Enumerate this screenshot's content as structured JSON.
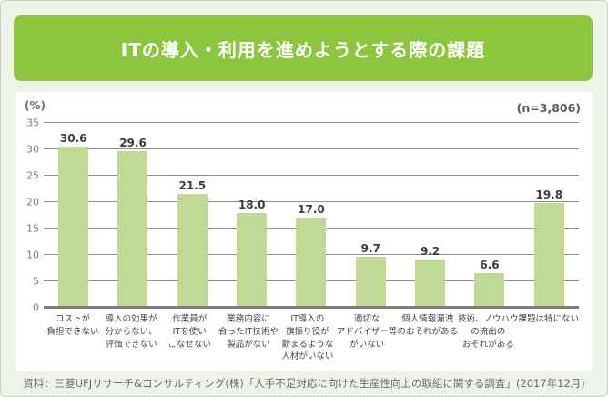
{
  "page": {
    "source": "資料：三菱UFJリサーチ&コンサルティング(株)「人手不足対応に向けた生産性向上の取組に関する調査」(2017年12月)"
  },
  "chart_data": {
    "type": "bar",
    "title": "ITの導入・利用を進めようとする際の課題",
    "ylabel": "(%)",
    "n_label": "(n=3,806)",
    "ylim": [
      0,
      35
    ],
    "yticks": [
      0,
      5,
      10,
      15,
      20,
      25,
      30,
      35
    ],
    "grid": true,
    "categories": [
      "コストが負担できない",
      "導入の効果が分からない、評価できない",
      "作業員がITを使いこなせない",
      "業務内容に合ったIT技術や製品がない",
      "IT導入の旗振り役が勤まるような人材がいない",
      "適切なアドバイザー等がいない",
      "個人情報漏洩のおそれがある",
      "技術、ノウハウの流出のおそれがある",
      "課題は特にない"
    ],
    "category_lines": [
      [
        "コストが",
        "負担できない"
      ],
      [
        "導入の効果が",
        "分からない、",
        "評価できない"
      ],
      [
        "作業員が",
        "ITを使い",
        "こなせない"
      ],
      [
        "業務内容に",
        "合ったIT技術や",
        "製品がない"
      ],
      [
        "IT導入の",
        "旗振り役が",
        "勤まるような",
        "人材がいない"
      ],
      [
        "適切な",
        "アドバイザー等",
        "がいない"
      ],
      [
        "個人情報漏洩",
        "のおそれがある"
      ],
      [
        "技術、ノウハウ",
        "の流出の",
        "おそれがある"
      ],
      [
        "課題は特にない"
      ]
    ],
    "values": [
      30.6,
      29.6,
      21.5,
      18.0,
      17.0,
      9.7,
      9.2,
      6.6,
      19.8
    ]
  },
  "colors": {
    "banner_green": "#8cc63e",
    "bar_green": "#c0da96",
    "page_background": "#eef3e9",
    "panel_background": "#ffffff",
    "gridline_gray": "#8e8e8e"
  }
}
